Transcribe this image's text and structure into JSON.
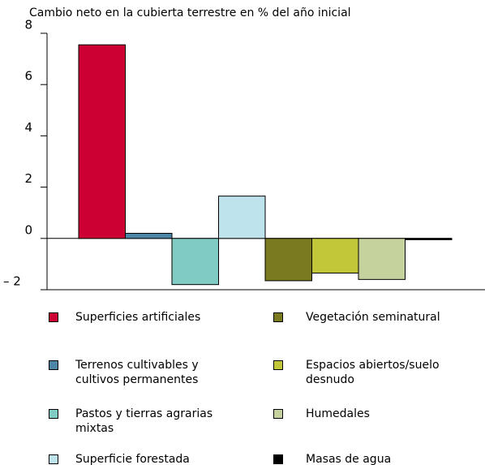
{
  "chart_data": {
    "type": "bar",
    "title": "Cambio neto en la cubierta terrestre en % del año inicial",
    "series": [
      {
        "name": "Superficies artificiales",
        "color": "#cc0033",
        "values": [
          7.55
        ]
      },
      {
        "name": "Terrenos cultivables y cultivos permanentes",
        "color": "#4d85a6",
        "values": [
          0.2
        ]
      },
      {
        "name": "Pastos y tierras agrarias mixtas",
        "color": "#80cbc4",
        "values": [
          -1.8
        ]
      },
      {
        "name": "Superficie forestada",
        "color": "#bfe3ec",
        "values": [
          1.65
        ]
      },
      {
        "name": "Vegetación seminatural",
        "color": "#7a7a20",
        "values": [
          -1.65
        ]
      },
      {
        "name": "Espacios abiertos/suelo desnudo",
        "color": "#c2c73a",
        "values": [
          -1.35
        ]
      },
      {
        "name": "Humedales",
        "color": "#c5d29e",
        "values": [
          -1.6
        ]
      },
      {
        "name": "Masas de agua",
        "color": "#000000",
        "values": [
          -0.05
        ]
      }
    ],
    "ylim": [
      -2,
      8
    ],
    "yticks": [
      {
        "value": -2,
        "label": "– 2"
      },
      0,
      2,
      4,
      6,
      8
    ]
  }
}
